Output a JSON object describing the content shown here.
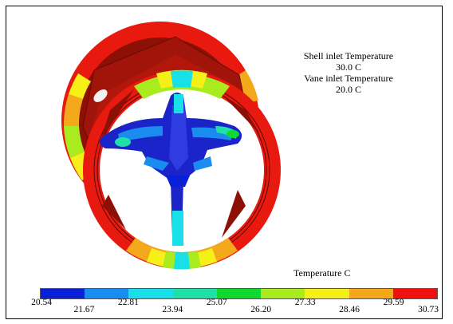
{
  "annotation": {
    "shell_label": "Shell inlet Temperature",
    "shell_value": "30.0 C",
    "vane_label": "Vane inlet Temperature",
    "vane_value": "20.0 C"
  },
  "legend": {
    "title": "Temperature C",
    "ticks": [
      "20.54",
      "21.67",
      "22.81",
      "23.94",
      "25.07",
      "26.20",
      "27.33",
      "28.46",
      "29.59",
      "30.73"
    ],
    "colors": [
      "#0a1fd8",
      "#1a8cf0",
      "#17e0e8",
      "#1fe0a8",
      "#10d830",
      "#a8ec20",
      "#f4f018",
      "#f4a81c",
      "#f01010"
    ]
  },
  "colors": {
    "hot": "#ec1c10",
    "shadow": "#9a1208",
    "cold": "#1a24c8"
  }
}
